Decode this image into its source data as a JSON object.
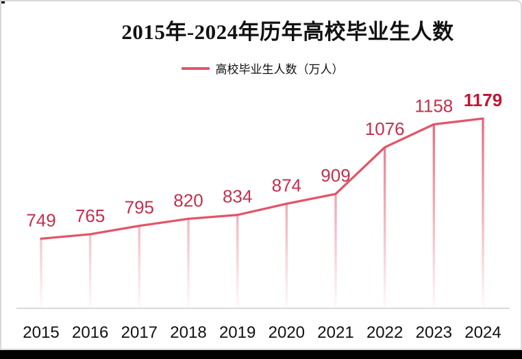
{
  "chart_data": {
    "type": "line",
    "title": "2015年-2024年历年高校毕业生人数",
    "legend": "高校毕业生人数（万人）",
    "categories": [
      "2015",
      "2016",
      "2017",
      "2018",
      "2019",
      "2020",
      "2021",
      "2022",
      "2023",
      "2024"
    ],
    "series": [
      {
        "name": "高校毕业生人数（万人）",
        "values": [
          749,
          765,
          795,
          820,
          834,
          874,
          909,
          1076,
          1158,
          1179
        ]
      }
    ],
    "xlabel": "",
    "ylabel": "",
    "ylim": [
      500,
      1200
    ],
    "grid": false,
    "legend_position": "top-center",
    "data_labels_shown": true,
    "last_label_bold": true,
    "colors": {
      "line": "#e25569",
      "drop_line": "#e25569",
      "data_label": "#c2304d",
      "data_label_last": "#c01633",
      "axis_line": "#d9d9d9",
      "axis_label": "#111111",
      "title": "#111111",
      "bottom_bar": "#000000"
    }
  }
}
